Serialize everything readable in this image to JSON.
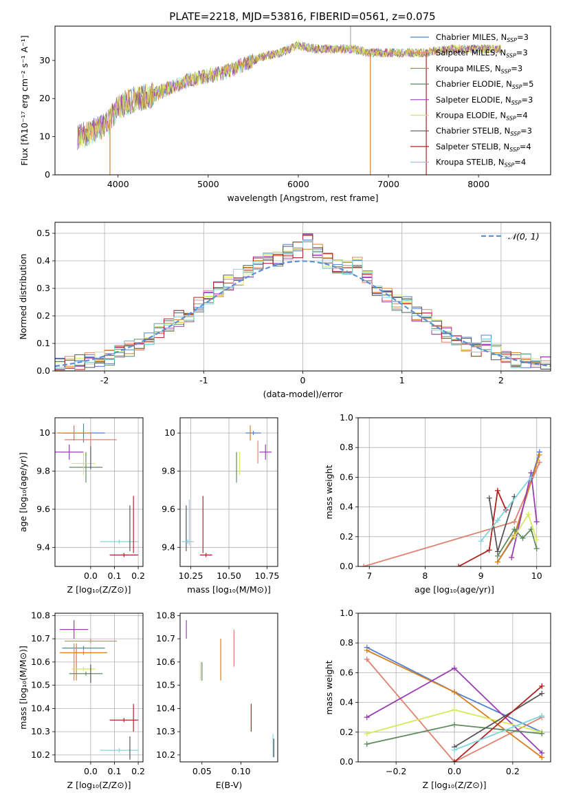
{
  "figure_title": "PLATE=2218, MJD=53816, FIBERID=0561, z=0.075",
  "colors": {
    "Chabrier MILES": "#4f7fd0",
    "Salpeter MILES": "#e0806f",
    "Kroupa MILES": "#d77f1e",
    "Chabrier ELODIE": "#5f8a5f",
    "Salpeter ELODIE": "#9a3cb4",
    "Kroupa ELODIE": "#d7e85a",
    "Chabrier STELIB": "#555555",
    "Salpeter STELIB": "#b22020",
    "Kroupa STELIB": "#7fd6da"
  },
  "chart_data": [
    {
      "id": "spectrum",
      "type": "line",
      "xlabel": "wavelength [Angstrom, rest frame]",
      "ylabel": "Flux [fλ10⁻¹⁷ erg cm⁻² s⁻¹ A⁻¹]",
      "xlim": [
        3300,
        8800
      ],
      "ylim": [
        0,
        39
      ],
      "xticks": [
        4000,
        5000,
        6000,
        7000,
        8000
      ],
      "yticks": [
        0,
        10,
        20,
        30
      ],
      "legend_loc": "top-right",
      "legend": [
        {
          "label": "Chabrier MILES, N",
          "sub": "SSP",
          "suffix": "=3"
        },
        {
          "label": "Salpeter MILES, N",
          "sub": "SSP",
          "suffix": "=3"
        },
        {
          "label": "Kroupa MILES, N",
          "sub": "SSP",
          "suffix": "=3"
        },
        {
          "label": "Chabrier ELODIE, N",
          "sub": "SSP",
          "suffix": "=5"
        },
        {
          "label": "Salpeter ELODIE, N",
          "sub": "SSP",
          "suffix": "=3"
        },
        {
          "label": "Kroupa ELODIE, N",
          "sub": "SSP",
          "suffix": "=4"
        },
        {
          "label": "Chabrier STELIB, N",
          "sub": "SSP",
          "suffix": "=3"
        },
        {
          "label": "Salpeter STELIB, N",
          "sub": "SSP",
          "suffix": "=4"
        },
        {
          "label": "Kroupa STELIB, N",
          "sub": "SSP",
          "suffix": "=4"
        }
      ],
      "continuum_x": [
        3550,
        3700,
        3900,
        4000,
        4200,
        4400,
        4600,
        4800,
        5000,
        5200,
        5400,
        5600,
        5800,
        6000,
        6200,
        6400,
        6600,
        6800,
        7000,
        7200,
        7400,
        7700,
        8000,
        8200
      ],
      "continuum_y": [
        10,
        11,
        14,
        18,
        20,
        21,
        23,
        25,
        26,
        27,
        29,
        31,
        32,
        34,
        33,
        33,
        33,
        32,
        32,
        32,
        32,
        33,
        33,
        33
      ],
      "spikes": [
        {
          "x": 3910,
          "y": 0
        },
        {
          "x": 6800,
          "y": 0
        },
        {
          "x": 7420,
          "y": 0
        },
        {
          "x": 6580,
          "y": 39
        }
      ]
    },
    {
      "id": "residuals",
      "type": "histogram",
      "xlabel": "(data-model)/error",
      "ylabel": "Normed distribution",
      "xlim": [
        -2.5,
        2.5
      ],
      "ylim": [
        0,
        0.54
      ],
      "xticks": [
        -2,
        -1,
        0,
        1,
        2
      ],
      "yticks": [
        0.0,
        0.1,
        0.2,
        0.3,
        0.4,
        0.5
      ],
      "grid": true,
      "legend_loc": "top-right",
      "legend": [
        {
          "label": "𝒩(0, 1)"
        }
      ],
      "bin_edges": [
        -2.5,
        -2.4,
        -2.3,
        -2.2,
        -2.1,
        -2.0,
        -1.9,
        -1.8,
        -1.7,
        -1.6,
        -1.5,
        -1.4,
        -1.3,
        -1.2,
        -1.1,
        -1.0,
        -0.9,
        -0.8,
        -0.7,
        -0.6,
        -0.5,
        -0.4,
        -0.3,
        -0.2,
        -0.1,
        0.0,
        0.1,
        0.2,
        0.3,
        0.4,
        0.5,
        0.6,
        0.7,
        0.8,
        0.9,
        1.0,
        1.1,
        1.2,
        1.3,
        1.4,
        1.5,
        1.6,
        1.7,
        1.8,
        1.9,
        2.0,
        2.1,
        2.2,
        2.3,
        2.4,
        2.5
      ],
      "hist_base": [
        0.02,
        0.025,
        0.03,
        0.04,
        0.045,
        0.05,
        0.065,
        0.08,
        0.09,
        0.11,
        0.15,
        0.16,
        0.19,
        0.2,
        0.24,
        0.27,
        0.3,
        0.32,
        0.34,
        0.36,
        0.39,
        0.4,
        0.41,
        0.43,
        0.44,
        0.47,
        0.43,
        0.4,
        0.38,
        0.37,
        0.4,
        0.35,
        0.3,
        0.28,
        0.25,
        0.24,
        0.21,
        0.2,
        0.16,
        0.13,
        0.11,
        0.1,
        0.08,
        0.1,
        0.07,
        0.05,
        0.04,
        0.035,
        0.03,
        0.025
      ]
    },
    {
      "id": "age-vs-Z",
      "type": "scatter",
      "xlabel": "Z [log₁₀(Z/Z⊙)]",
      "ylabel": "age  [log₁₀(age/yr)]",
      "xlim": [
        -0.15,
        0.22
      ],
      "ylim": [
        9.3,
        10.08
      ],
      "xticks": [
        0.0,
        0.1,
        0.2
      ],
      "xticklabels": [
        "0.0",
        "0.1",
        "0.2"
      ],
      "yticks": [
        9.4,
        9.6,
        9.8,
        10.0
      ],
      "grid": true,
      "points": [
        {
          "series": "Chabrier MILES",
          "x": -0.03,
          "xerr": 0.09,
          "y": 10.0,
          "yerr": 0.05
        },
        {
          "series": "Salpeter MILES",
          "x": 0.0,
          "xerr": 0.11,
          "y": 9.965,
          "yerr": 0.04
        },
        {
          "series": "Kroupa MILES",
          "x": -0.07,
          "xerr": 0.07,
          "y": 10.0,
          "yerr": 0.04
        },
        {
          "series": "Chabrier ELODIE",
          "x": -0.02,
          "xerr": 0.07,
          "y": 9.82,
          "yerr": 0.08
        },
        {
          "series": "Salpeter ELODIE",
          "x": -0.09,
          "xerr": 0.06,
          "y": 9.9,
          "yerr": 0.04
        },
        {
          "series": "Kroupa ELODIE",
          "x": -0.03,
          "xerr": 0.05,
          "y": 9.84,
          "yerr": 0.06
        },
        {
          "series": "Chabrier STELIB",
          "x": 0.0,
          "xerr": 0.0,
          "y": 9.87,
          "yerr": 0.06
        },
        {
          "series": "Salpeter STELIB",
          "x": 0.14,
          "xerr": 0.06,
          "y": 9.36,
          "yerr": 0.0
        },
        {
          "series": "Kroupa STELIB",
          "x": 0.12,
          "xerr": 0.08,
          "y": 9.43,
          "yerr": 0.0
        },
        {
          "series": "Salpeter STELIB",
          "x": 0.18,
          "xerr": 0.0,
          "y": 9.52,
          "yerr": 0.15
        },
        {
          "series": "Chabrier STELIB",
          "x": 0.165,
          "xerr": 0.0,
          "y": 9.5,
          "yerr": 0.12
        }
      ]
    },
    {
      "id": "age-vs-mass",
      "type": "scatter",
      "xlabel": "mass [log₁₀(M/M⊙)]",
      "ylabel": "",
      "xlim": [
        10.18,
        10.82
      ],
      "ylim": [
        9.3,
        10.08
      ],
      "xticks": [
        10.25,
        10.5,
        10.75
      ],
      "xticklabels": [
        "10.25",
        "10.50",
        "10.75"
      ],
      "yticks": [
        9.4,
        9.6,
        9.8,
        10.0
      ],
      "grid": true,
      "points": [
        {
          "series": "Chabrier MILES",
          "x": 10.66,
          "xerr": 0.05,
          "y": 10.0,
          "yerr": 0.0
        },
        {
          "series": "Salpeter MILES",
          "x": 10.69,
          "xerr": 0.0,
          "y": 9.9,
          "yerr": 0.06
        },
        {
          "series": "Kroupa MILES",
          "x": 10.64,
          "xerr": 0.0,
          "y": 10.0,
          "yerr": 0.04
        },
        {
          "series": "Chabrier ELODIE",
          "x": 10.55,
          "xerr": 0.0,
          "y": 9.82,
          "yerr": 0.08
        },
        {
          "series": "Salpeter ELODIE",
          "x": 10.74,
          "xerr": 0.04,
          "y": 9.9,
          "yerr": 0.04
        },
        {
          "series": "Kroupa ELODIE",
          "x": 10.57,
          "xerr": 0.0,
          "y": 9.84,
          "yerr": 0.06
        },
        {
          "series": "Chabrier STELIB",
          "x": 10.22,
          "xerr": 0.0,
          "y": 9.5,
          "yerr": 0.12
        },
        {
          "series": "Salpeter STELIB",
          "x": 10.35,
          "xerr": 0.04,
          "y": 9.36,
          "yerr": 0.0
        },
        {
          "series": "Kroupa STELIB",
          "x": 10.23,
          "xerr": 0.04,
          "y": 9.43,
          "yerr": 0.0
        },
        {
          "series": "Salpeter STELIB",
          "x": 10.33,
          "xerr": 0.0,
          "y": 9.52,
          "yerr": 0.15
        },
        {
          "series": "Kroupa STELIB",
          "x": 10.24,
          "xerr": 0.0,
          "y": 9.53,
          "yerr": 0.12
        }
      ]
    },
    {
      "id": "massweight-vs-age",
      "type": "line",
      "xlabel": "age  [log₁₀(age/yr)]",
      "ylabel": "mass weight",
      "xlim": [
        6.8,
        10.25
      ],
      "ylim": [
        0,
        1
      ],
      "xticks": [
        7,
        8,
        9,
        10
      ],
      "yticks": [
        0.0,
        0.2,
        0.4,
        0.6,
        0.8,
        1.0
      ],
      "grid": true,
      "series": [
        {
          "name": "Chabrier MILES",
          "x": [
            9.3,
            9.6,
            10.05
          ],
          "y": [
            0.03,
            0.2,
            0.77
          ]
        },
        {
          "name": "Salpeter MILES",
          "x": [
            6.9,
            9.6,
            10.05
          ],
          "y": [
            0.0,
            0.3,
            0.7
          ]
        },
        {
          "name": "Kroupa MILES",
          "x": [
            9.3,
            9.6,
            10.05
          ],
          "y": [
            0.03,
            0.21,
            0.75
          ]
        },
        {
          "name": "Chabrier ELODIE",
          "x": [
            9.3,
            9.6,
            9.75,
            9.9,
            10.0
          ],
          "y": [
            0.07,
            0.25,
            0.19,
            0.25,
            0.12
          ]
        },
        {
          "name": "Salpeter ELODIE",
          "x": [
            9.55,
            9.9,
            10.0
          ],
          "y": [
            0.06,
            0.63,
            0.3
          ]
        },
        {
          "name": "Kroupa ELODIE",
          "x": [
            9.6,
            9.85,
            10.0
          ],
          "y": [
            0.2,
            0.35,
            0.18
          ]
        },
        {
          "name": "Chabrier STELIB",
          "x": [
            9.15,
            9.3,
            9.6
          ],
          "y": [
            0.46,
            0.1,
            0.47
          ]
        },
        {
          "name": "Salpeter STELIB",
          "x": [
            8.6,
            9.15,
            9.3,
            9.45
          ],
          "y": [
            0.0,
            0.11,
            0.51,
            0.38
          ]
        },
        {
          "name": "Kroupa STELIB",
          "x": [
            9.0,
            9.3,
            9.9
          ],
          "y": [
            0.17,
            0.31,
            0.6
          ]
        }
      ]
    },
    {
      "id": "mass-vs-Z",
      "type": "scatter",
      "xlabel": "Z [log₁₀(Z/Z⊙)]",
      "ylabel": "mass [log₁₀(M/M⊙)]",
      "xlim": [
        -0.15,
        0.22
      ],
      "ylim": [
        10.17,
        10.81
      ],
      "xticks": [
        0.0,
        0.1,
        0.2
      ],
      "xticklabels": [
        "0.0",
        "0.1",
        "0.2"
      ],
      "yticks": [
        10.2,
        10.3,
        10.4,
        10.5,
        10.6,
        10.7,
        10.8
      ],
      "grid": true,
      "points": [
        {
          "series": "Chabrier MILES",
          "x": -0.03,
          "xerr": 0.09,
          "y": 10.66,
          "yerr": 0.0
        },
        {
          "series": "Salpeter MILES",
          "x": 0.0,
          "xerr": 0.11,
          "y": 10.69,
          "yerr": 0.0
        },
        {
          "series": "Kroupa MILES",
          "x": -0.03,
          "xerr": 0.1,
          "y": 10.64,
          "yerr": 0.0
        },
        {
          "series": "Salpeter MILES",
          "x": -0.07,
          "xerr": 0.0,
          "y": 10.6,
          "yerr": 0.08
        },
        {
          "series": "Kroupa MILES",
          "x": -0.06,
          "xerr": 0.0,
          "y": 10.6,
          "yerr": 0.08
        },
        {
          "series": "Chabrier ELODIE",
          "x": -0.02,
          "xerr": 0.07,
          "y": 10.55,
          "yerr": 0.0
        },
        {
          "series": "Salpeter ELODIE",
          "x": -0.07,
          "xerr": 0.06,
          "y": 10.74,
          "yerr": 0.04
        },
        {
          "series": "Kroupa ELODIE",
          "x": -0.03,
          "xerr": 0.05,
          "y": 10.57,
          "yerr": 0.0
        },
        {
          "series": "Chabrier STELIB",
          "x": 0.0,
          "xerr": 0.0,
          "y": 10.55,
          "yerr": 0.04
        },
        {
          "series": "Salpeter STELIB",
          "x": 0.14,
          "xerr": 0.06,
          "y": 10.35,
          "yerr": 0.0
        },
        {
          "series": "Salpeter STELIB",
          "x": 0.18,
          "xerr": 0.0,
          "y": 10.36,
          "yerr": 0.06
        },
        {
          "series": "Kroupa STELIB",
          "x": 0.12,
          "xerr": 0.08,
          "y": 10.22,
          "yerr": 0.0
        },
        {
          "series": "Chabrier STELIB",
          "x": 0.165,
          "xerr": 0.0,
          "y": 10.23,
          "yerr": 0.05
        }
      ]
    },
    {
      "id": "mass-vs-EBV",
      "type": "scatter",
      "xlabel": "E(B-V)",
      "ylabel": "",
      "xlim": [
        0.022,
        0.147
      ],
      "ylim": [
        10.17,
        10.81
      ],
      "xticks": [
        0.05,
        0.1
      ],
      "xticklabels": [
        "0.05",
        "0.10"
      ],
      "yticks": [
        10.2,
        10.3,
        10.4,
        10.5,
        10.6,
        10.7,
        10.8
      ],
      "grid": false,
      "points": [
        {
          "series": "Salpeter ELODIE",
          "x": 0.03,
          "xerr": 0.0,
          "y": 10.74,
          "yerr": 0.04
        },
        {
          "series": "Kroupa ELODIE",
          "x": 0.048,
          "xerr": 0.0,
          "y": 10.56,
          "yerr": 0.04
        },
        {
          "series": "Chabrier ELODIE",
          "x": 0.05,
          "xerr": 0.0,
          "y": 10.56,
          "yerr": 0.04
        },
        {
          "series": "Kroupa MILES",
          "x": 0.074,
          "xerr": 0.0,
          "y": 10.61,
          "yerr": 0.09
        },
        {
          "series": "Salpeter MILES",
          "x": 0.091,
          "xerr": 0.0,
          "y": 10.66,
          "yerr": 0.08
        },
        {
          "series": "Salpeter STELIB",
          "x": 0.113,
          "xerr": 0.0,
          "y": 10.36,
          "yerr": 0.06
        },
        {
          "series": "Kroupa STELIB",
          "x": 0.141,
          "xerr": 0.0,
          "y": 10.24,
          "yerr": 0.05
        },
        {
          "series": "Chabrier STELIB",
          "x": 0.142,
          "xerr": 0.0,
          "y": 10.23,
          "yerr": 0.04
        }
      ]
    },
    {
      "id": "massweight-vs-Z",
      "type": "line",
      "xlabel": "Z [log₁₀(Z/Z⊙)]",
      "ylabel": "mass weight",
      "xlim": [
        -0.33,
        0.33
      ],
      "ylim": [
        0,
        1
      ],
      "xticks": [
        -0.2,
        0.0,
        0.2
      ],
      "xticklabels": [
        "−0.2",
        "0.0",
        "0.2"
      ],
      "yticks": [
        0.0,
        0.2,
        0.4,
        0.6,
        0.8,
        1.0
      ],
      "grid": true,
      "series": [
        {
          "name": "Chabrier MILES",
          "x": [
            -0.3,
            0.0,
            0.3
          ],
          "y": [
            0.77,
            0.47,
            0.2
          ]
        },
        {
          "name": "Kroupa MILES",
          "x": [
            -0.3,
            0.0,
            0.3
          ],
          "y": [
            0.75,
            0.47,
            0.03
          ]
        },
        {
          "name": "Salpeter MILES",
          "x": [
            -0.3,
            0.0,
            0.3
          ],
          "y": [
            0.69,
            0.0,
            0.3
          ]
        },
        {
          "name": "Salpeter ELODIE",
          "x": [
            -0.3,
            0.0,
            0.3
          ],
          "y": [
            0.3,
            0.63,
            0.06
          ]
        },
        {
          "name": "Kroupa ELODIE",
          "x": [
            -0.3,
            0.0,
            0.3
          ],
          "y": [
            0.19,
            0.35,
            0.2
          ]
        },
        {
          "name": "Chabrier ELODIE",
          "x": [
            -0.3,
            0.0,
            0.3
          ],
          "y": [
            0.12,
            0.25,
            0.19
          ]
        },
        {
          "name": "Chabrier STELIB",
          "x": [
            0.0,
            0.3
          ],
          "y": [
            0.1,
            0.46
          ]
        },
        {
          "name": "Salpeter STELIB",
          "x": [
            0.0,
            0.3
          ],
          "y": [
            0.0,
            0.51
          ]
        },
        {
          "name": "Kroupa STELIB",
          "x": [
            0.0,
            0.3
          ],
          "y": [
            0.08,
            0.31
          ]
        }
      ]
    }
  ]
}
